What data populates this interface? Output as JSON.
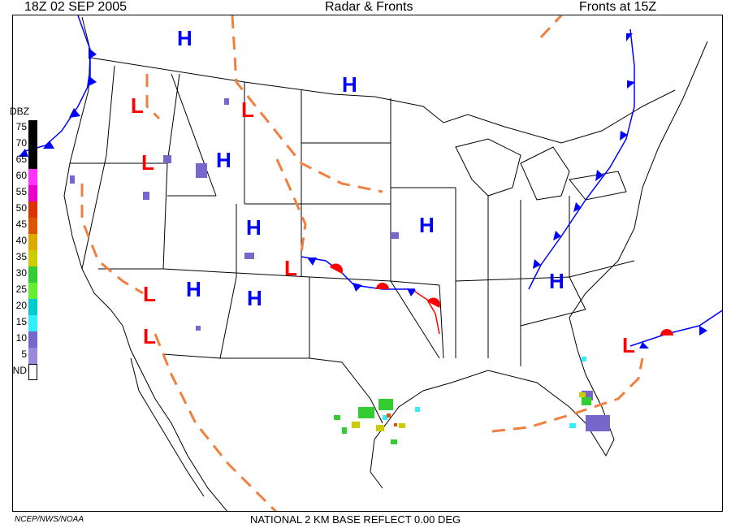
{
  "header": {
    "left": "18Z  02 SEP  2005",
    "center": "Radar & Fronts",
    "right": "Fronts at 15Z"
  },
  "footer": {
    "left": "NCEP/NWS/NOAA",
    "center": "NATIONAL 2 KM BASE REFLECT 0.00 DEG"
  },
  "legend": {
    "title": "DBZ",
    "entries": [
      {
        "label": "75",
        "color": "#000000"
      },
      {
        "label": "70",
        "color": "#000000"
      },
      {
        "label": "65",
        "color": "#000000"
      },
      {
        "label": "60",
        "color": "#ff33ff"
      },
      {
        "label": "55",
        "color": "#ee00cc"
      },
      {
        "label": "50",
        "color": "#dd3300"
      },
      {
        "label": "45",
        "color": "#dd5500"
      },
      {
        "label": "40",
        "color": "#ddaa00"
      },
      {
        "label": "35",
        "color": "#cccc00"
      },
      {
        "label": "30",
        "color": "#33cc33"
      },
      {
        "label": "25",
        "color": "#66ee33"
      },
      {
        "label": "20",
        "color": "#00cccc"
      },
      {
        "label": "15",
        "color": "#33eeff"
      },
      {
        "label": "10",
        "color": "#7766cc"
      },
      {
        "label": "5",
        "color": "#9988dd"
      },
      {
        "label": "ND",
        "color": "#ffffff"
      }
    ]
  },
  "pressure_systems": {
    "high_label": "H",
    "low_label": "L",
    "high_color": "#0000ff",
    "low_color": "#ff0000"
  },
  "front_colors": {
    "cold": "#0000ff",
    "warm": "#ff0000",
    "trough": "#f08040"
  }
}
